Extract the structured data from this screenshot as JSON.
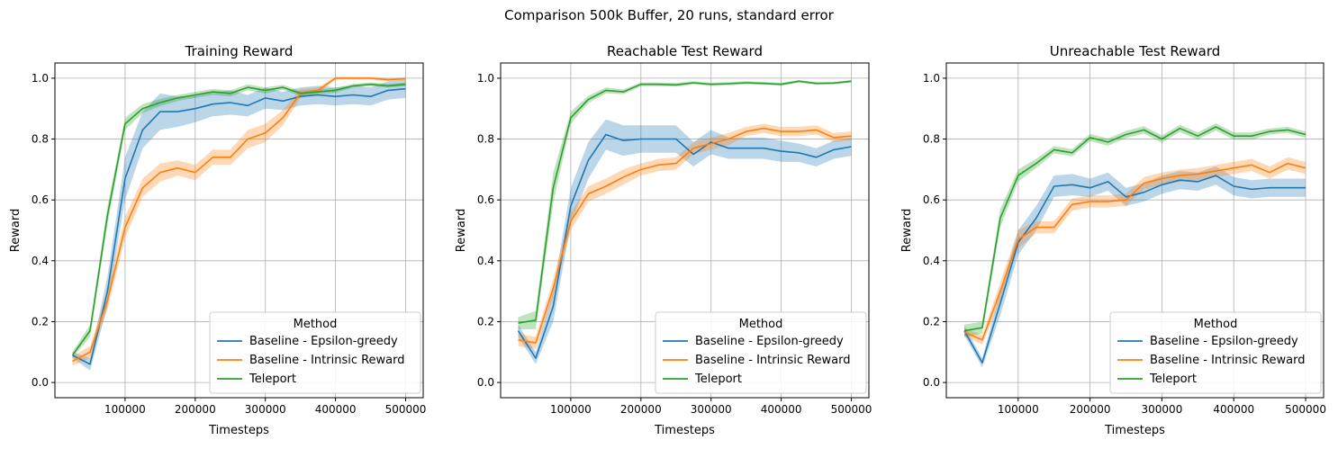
{
  "figure": {
    "suptitle": "Comparison 500k Buffer, 20 runs, standard error"
  },
  "colors": {
    "baseline_epsilon": "#1f77b4",
    "baseline_intrinsic": "#ff7f0e",
    "teleport": "#2ca02c"
  },
  "chart_data": [
    {
      "type": "line",
      "title": "Training Reward",
      "xlabel": "Timesteps",
      "ylabel": "Reward",
      "xlim": [
        0,
        525000
      ],
      "ylim": [
        -0.05,
        1.05
      ],
      "xticks": [
        100000,
        200000,
        300000,
        400000,
        500000
      ],
      "yticks": [
        0.0,
        0.2,
        0.4,
        0.6,
        0.8,
        1.0
      ],
      "grid": true,
      "legend": {
        "title": "Method",
        "placement": "lower-right"
      },
      "x": [
        25000,
        50000,
        75000,
        100000,
        125000,
        150000,
        175000,
        200000,
        225000,
        250000,
        275000,
        300000,
        325000,
        350000,
        375000,
        400000,
        425000,
        450000,
        475000,
        500000
      ],
      "series": [
        {
          "name": "Baseline - Epsilon-greedy",
          "color_key": "baseline_epsilon",
          "values": [
            0.09,
            0.06,
            0.3,
            0.67,
            0.83,
            0.89,
            0.89,
            0.9,
            0.915,
            0.92,
            0.91,
            0.935,
            0.925,
            0.94,
            0.945,
            0.94,
            0.945,
            0.94,
            0.96,
            0.965
          ],
          "err": [
            0.01,
            0.02,
            0.05,
            0.07,
            0.06,
            0.06,
            0.05,
            0.045,
            0.04,
            0.04,
            0.035,
            0.035,
            0.03,
            0.03,
            0.03,
            0.03,
            0.03,
            0.03,
            0.03,
            0.03
          ]
        },
        {
          "name": "Baseline - Intrinsic Reward",
          "color_key": "baseline_intrinsic",
          "values": [
            0.07,
            0.1,
            0.27,
            0.51,
            0.64,
            0.69,
            0.705,
            0.69,
            0.74,
            0.74,
            0.8,
            0.82,
            0.87,
            0.95,
            0.96,
            1.0,
            1.0,
            1.0,
            0.995,
            0.998
          ],
          "err": [
            0.015,
            0.02,
            0.03,
            0.035,
            0.03,
            0.03,
            0.025,
            0.025,
            0.025,
            0.025,
            0.03,
            0.03,
            0.025,
            0.015,
            0.01,
            0.005,
            0.005,
            0.005,
            0.005,
            0.005
          ]
        },
        {
          "name": "Teleport",
          "color_key": "teleport",
          "values": [
            0.09,
            0.17,
            0.55,
            0.85,
            0.9,
            0.92,
            0.935,
            0.945,
            0.955,
            0.95,
            0.97,
            0.96,
            0.97,
            0.95,
            0.955,
            0.96,
            0.975,
            0.98,
            0.975,
            0.98
          ],
          "err": [
            0.01,
            0.02,
            0.03,
            0.02,
            0.015,
            0.012,
            0.01,
            0.01,
            0.01,
            0.01,
            0.01,
            0.01,
            0.008,
            0.008,
            0.008,
            0.008,
            0.006,
            0.006,
            0.006,
            0.006
          ]
        }
      ]
    },
    {
      "type": "line",
      "title": "Reachable Test Reward",
      "xlabel": "Timesteps",
      "ylabel": "Reward",
      "xlim": [
        0,
        525000
      ],
      "ylim": [
        -0.05,
        1.05
      ],
      "xticks": [
        100000,
        200000,
        300000,
        400000,
        500000
      ],
      "yticks": [
        0.0,
        0.2,
        0.4,
        0.6,
        0.8,
        1.0
      ],
      "grid": true,
      "legend": {
        "title": "Method",
        "placement": "lower-right"
      },
      "x": [
        25000,
        50000,
        75000,
        100000,
        125000,
        150000,
        175000,
        200000,
        225000,
        250000,
        275000,
        300000,
        325000,
        350000,
        375000,
        400000,
        425000,
        450000,
        475000,
        500000
      ],
      "series": [
        {
          "name": "Baseline - Epsilon-greedy",
          "color_key": "baseline_epsilon",
          "values": [
            0.17,
            0.08,
            0.25,
            0.58,
            0.73,
            0.815,
            0.795,
            0.8,
            0.8,
            0.8,
            0.75,
            0.79,
            0.77,
            0.77,
            0.77,
            0.76,
            0.755,
            0.74,
            0.765,
            0.775
          ],
          "err": [
            0.02,
            0.02,
            0.05,
            0.06,
            0.06,
            0.05,
            0.05,
            0.045,
            0.045,
            0.045,
            0.04,
            0.04,
            0.035,
            0.035,
            0.035,
            0.035,
            0.03,
            0.03,
            0.03,
            0.03
          ]
        },
        {
          "name": "Baseline - Intrinsic Reward",
          "color_key": "baseline_intrinsic",
          "values": [
            0.14,
            0.13,
            0.31,
            0.53,
            0.62,
            0.645,
            0.675,
            0.7,
            0.715,
            0.72,
            0.77,
            0.785,
            0.8,
            0.825,
            0.835,
            0.825,
            0.825,
            0.83,
            0.805,
            0.81
          ],
          "err": [
            0.02,
            0.02,
            0.03,
            0.03,
            0.025,
            0.025,
            0.025,
            0.02,
            0.02,
            0.02,
            0.02,
            0.02,
            0.02,
            0.015,
            0.015,
            0.015,
            0.015,
            0.015,
            0.015,
            0.015
          ]
        },
        {
          "name": "Teleport",
          "color_key": "teleport",
          "values": [
            0.195,
            0.205,
            0.64,
            0.87,
            0.93,
            0.96,
            0.955,
            0.98,
            0.98,
            0.978,
            0.985,
            0.98,
            0.982,
            0.985,
            0.983,
            0.98,
            0.99,
            0.983,
            0.984,
            0.99
          ],
          "err": [
            0.02,
            0.03,
            0.05,
            0.02,
            0.012,
            0.01,
            0.008,
            0.006,
            0.006,
            0.006,
            0.005,
            0.005,
            0.005,
            0.005,
            0.005,
            0.005,
            0.004,
            0.004,
            0.004,
            0.004
          ]
        }
      ]
    },
    {
      "type": "line",
      "title": "Unreachable Test Reward",
      "xlabel": "Timesteps",
      "ylabel": "Reward",
      "xlim": [
        0,
        525000
      ],
      "ylim": [
        -0.05,
        1.05
      ],
      "xticks": [
        100000,
        200000,
        300000,
        400000,
        500000
      ],
      "yticks": [
        0.0,
        0.2,
        0.4,
        0.6,
        0.8,
        1.0
      ],
      "grid": true,
      "legend": {
        "title": "Method",
        "placement": "lower-right"
      },
      "x": [
        25000,
        50000,
        75000,
        100000,
        125000,
        150000,
        175000,
        200000,
        225000,
        250000,
        275000,
        300000,
        325000,
        350000,
        375000,
        400000,
        425000,
        450000,
        475000,
        500000
      ],
      "series": [
        {
          "name": "Baseline - Epsilon-greedy",
          "color_key": "baseline_epsilon",
          "values": [
            0.17,
            0.065,
            0.26,
            0.46,
            0.54,
            0.645,
            0.65,
            0.64,
            0.66,
            0.61,
            0.625,
            0.65,
            0.665,
            0.66,
            0.68,
            0.645,
            0.635,
            0.64,
            0.64,
            0.64
          ],
          "err": [
            0.015,
            0.015,
            0.04,
            0.04,
            0.04,
            0.035,
            0.035,
            0.03,
            0.03,
            0.03,
            0.03,
            0.03,
            0.03,
            0.03,
            0.03,
            0.03,
            0.03,
            0.03,
            0.03,
            0.03
          ]
        },
        {
          "name": "Baseline - Intrinsic Reward",
          "color_key": "baseline_intrinsic",
          "values": [
            0.165,
            0.14,
            0.3,
            0.47,
            0.51,
            0.51,
            0.585,
            0.595,
            0.595,
            0.6,
            0.655,
            0.67,
            0.68,
            0.685,
            0.695,
            0.705,
            0.715,
            0.69,
            0.72,
            0.705
          ],
          "err": [
            0.015,
            0.015,
            0.03,
            0.03,
            0.02,
            0.02,
            0.02,
            0.02,
            0.02,
            0.02,
            0.02,
            0.02,
            0.02,
            0.02,
            0.02,
            0.02,
            0.02,
            0.02,
            0.02,
            0.02
          ]
        },
        {
          "name": "Teleport",
          "color_key": "teleport",
          "values": [
            0.17,
            0.18,
            0.54,
            0.68,
            0.72,
            0.765,
            0.755,
            0.805,
            0.79,
            0.815,
            0.83,
            0.8,
            0.835,
            0.81,
            0.84,
            0.81,
            0.81,
            0.825,
            0.83,
            0.815
          ],
          "err": [
            0.02,
            0.02,
            0.03,
            0.02,
            0.015,
            0.012,
            0.012,
            0.012,
            0.012,
            0.012,
            0.012,
            0.012,
            0.012,
            0.012,
            0.012,
            0.012,
            0.012,
            0.01,
            0.01,
            0.01
          ]
        }
      ]
    }
  ]
}
